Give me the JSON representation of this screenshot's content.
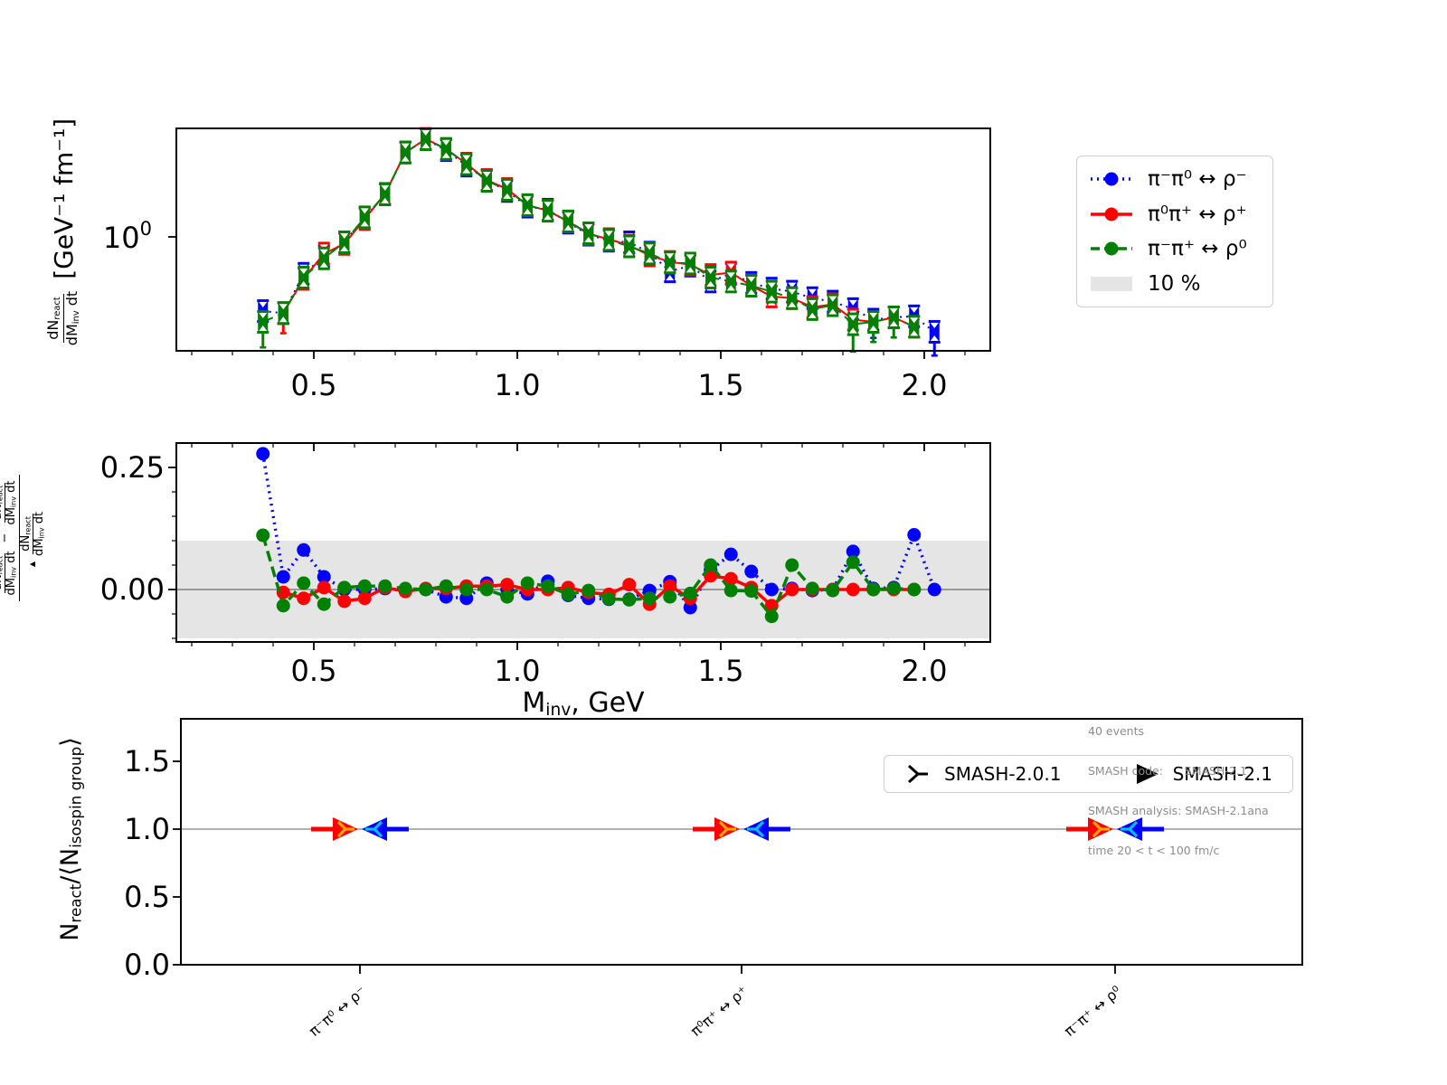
{
  "colors": {
    "blue": "#0000ff",
    "red": "#ff0000",
    "green": "#008000",
    "band": "#e5e5e5",
    "zero_line": "#808080",
    "ref_line": "#999999",
    "orange": "#ffa500",
    "cyan": "#00bfff",
    "annotation_gray": "#8c8c8c"
  },
  "legend1": {
    "items": [
      {
        "label": "π⁻π⁰ ↔ ρ⁻",
        "color": "#0000ff",
        "linestyle": "dotted"
      },
      {
        "label": "π⁰π⁺ ↔ ρ⁺",
        "color": "#ff0000",
        "linestyle": "solid"
      },
      {
        "label": "π⁻π⁺ ↔ ρ⁰",
        "color": "#008000",
        "linestyle": "dashed"
      },
      {
        "label": "10 %",
        "color": "#e5e5e5",
        "linestyle": "band"
      }
    ]
  },
  "legend2": {
    "items": [
      {
        "label": "SMASH-2.0.1",
        "marker": "tri-right"
      },
      {
        "label": "SMASH-2.1",
        "marker": "triangle-right"
      }
    ]
  },
  "annotation": {
    "lines": [
      "40 events",
      "SMASH code:      SMASH-2.1",
      "SMASH analysis: SMASH-2.1ana",
      "time 20 < t < 100 fm/c"
    ]
  },
  "labels": {
    "top_ylabel": {
      "num_main": "dN",
      "num_sub": "react",
      "den_main": "dM",
      "den_sub": "inv",
      "den_tail": " dt",
      "units": "[GeV⁻¹ fm⁻¹]"
    },
    "top_ytick": {
      "main": "10",
      "sup": "0"
    },
    "mid_ylabel": {
      "frac": {
        "num_main": "dN",
        "num_sub": "react",
        "den_main": "dM",
        "den_sub": "inv",
        "den_tail": " dt"
      },
      "minus": "−",
      "marker": "▲"
    },
    "bot_ylabel": {
      "p1": "N",
      "s1": "react",
      "p2": "/⟨N",
      "s2": "isospin group",
      "p3": "⟩"
    },
    "xlabel": {
      "main": "M",
      "sub": "inv",
      "tail": ", GeV"
    }
  },
  "chart_data": [
    {
      "type": "line",
      "name": "invariant-mass-spectrum",
      "scale_y": "log",
      "ylabel": "dN_react/dM_inv dt [GeV^-1 fm^-1]",
      "xlim": [
        0.16,
        2.16
      ],
      "ylim": [
        0.22,
        4.3
      ],
      "xtick_values": [
        0.5,
        1.0,
        1.5,
        2.0
      ],
      "xtick_labels": [
        "0.5",
        "1.0",
        "1.5",
        "2.0"
      ],
      "ytick_labels": [
        "10⁰"
      ],
      "x": [
        0.375,
        0.425,
        0.475,
        0.525,
        0.575,
        0.625,
        0.675,
        0.725,
        0.775,
        0.825,
        0.875,
        0.925,
        0.975,
        1.025,
        1.075,
        1.125,
        1.175,
        1.225,
        1.275,
        1.325,
        1.375,
        1.425,
        1.475,
        1.525,
        1.575,
        1.625,
        1.675,
        1.725,
        1.775,
        1.825,
        1.875,
        1.925,
        1.975,
        2.025
      ],
      "series": [
        {
          "name": "π⁻π⁰ ↔ ρ⁻",
          "color": "#0000ff",
          "linestyle": "dotted",
          "values": [
            0.37,
            0.36,
            0.61,
            0.77,
            0.93,
            1.29,
            1.77,
            3.1,
            3.7,
            3.2,
            2.6,
            2.14,
            1.85,
            1.5,
            1.44,
            1.21,
            1.03,
            0.95,
            0.93,
            0.81,
            0.63,
            0.68,
            0.55,
            0.61,
            0.54,
            0.5,
            0.48,
            0.44,
            0.42,
            0.38,
            0.33,
            0.34,
            0.345,
            0.28
          ]
        },
        {
          "name": "π⁰π⁺ ↔ ρ⁺",
          "color": "#ff0000",
          "linestyle": "solid",
          "values": [
            null,
            0.36,
            0.57,
            0.8,
            0.91,
            1.27,
            1.78,
            3.1,
            3.72,
            3.25,
            2.67,
            2.14,
            1.9,
            1.53,
            1.42,
            1.23,
            1.04,
            0.97,
            0.89,
            0.78,
            0.715,
            0.69,
            0.6,
            0.62,
            0.52,
            0.45,
            0.44,
            0.39,
            0.405,
            0.33,
            0.32,
            0.34,
            0.3,
            null
          ]
        },
        {
          "name": "π⁻π⁺ ↔ ρ⁰",
          "color": "#008000",
          "linestyle": "dashed",
          "values": [
            0.32,
            0.36,
            0.58,
            0.75,
            0.93,
            1.3,
            1.77,
            3.1,
            3.7,
            3.25,
            2.65,
            2.12,
            1.88,
            1.53,
            1.42,
            1.23,
            1.05,
            0.96,
            0.88,
            0.8,
            0.71,
            0.7,
            0.58,
            0.55,
            0.52,
            0.48,
            0.44,
            0.38,
            0.4,
            0.31,
            0.32,
            0.34,
            0.3,
            null
          ]
        }
      ]
    },
    {
      "type": "line",
      "name": "relative-deviation",
      "ylabel": "(dN_react/dM_inv dt − dN_react^▲/dM_inv dt) / (dN_react^▲/dM_inv dt)",
      "xlabel": "M_inv, GeV",
      "band": {
        "label": "10 %",
        "range": [
          -0.1,
          0.1
        ]
      },
      "xlim": [
        0.16,
        2.16
      ],
      "ylim": [
        -0.107,
        0.3
      ],
      "xtick_values": [
        0.5,
        1.0,
        1.5,
        2.0
      ],
      "xtick_labels": [
        "0.5",
        "1.0",
        "1.5",
        "2.0"
      ],
      "ytick_values": [
        0.0,
        0.25
      ],
      "ytick_labels": [
        "0.00",
        "0.25"
      ],
      "x": [
        0.375,
        0.425,
        0.475,
        0.525,
        0.575,
        0.625,
        0.675,
        0.725,
        0.775,
        0.825,
        0.875,
        0.925,
        0.975,
        1.025,
        1.075,
        1.125,
        1.175,
        1.225,
        1.275,
        1.325,
        1.375,
        1.425,
        1.475,
        1.525,
        1.575,
        1.625,
        1.675,
        1.725,
        1.775,
        1.825,
        1.875,
        1.925,
        1.975,
        2.025
      ],
      "series": [
        {
          "name": "π⁻π⁰ ↔ ρ⁻",
          "color": "#0000ff",
          "linestyle": "dotted",
          "values": [
            0.278,
            0.026,
            0.081,
            0.026,
            0.0,
            0.0,
            0.002,
            -0.002,
            0.0,
            -0.015,
            -0.018,
            0.013,
            0.0,
            -0.009,
            0.017,
            -0.012,
            -0.018,
            -0.02,
            -0.02,
            -0.002,
            0.016,
            -0.037,
            0.04,
            0.072,
            0.037,
            0.0,
            0.002,
            -0.002,
            0.0,
            0.078,
            0.002,
            0.004,
            0.112,
            0.0
          ]
        },
        {
          "name": "π⁰π⁺ ↔ ρ⁺",
          "color": "#ff0000",
          "linestyle": "solid",
          "values": [
            null,
            -0.006,
            -0.018,
            0.004,
            -0.024,
            -0.018,
            0.004,
            -0.004,
            0.002,
            0.002,
            0.007,
            0.007,
            0.01,
            0.0,
            0.0,
            0.004,
            -0.006,
            -0.01,
            0.01,
            -0.03,
            0.007,
            -0.018,
            0.028,
            0.022,
            0.004,
            -0.033,
            0.0,
            0.0,
            0.0,
            0.0,
            0.0,
            0.0,
            0.0,
            null
          ]
        },
        {
          "name": "π⁻π⁺ ↔ ρ⁰",
          "color": "#008000",
          "linestyle": "dashed",
          "values": [
            0.111,
            -0.033,
            0.013,
            -0.03,
            0.004,
            0.007,
            0.007,
            0.002,
            0.0,
            0.007,
            0.0,
            0.0,
            -0.015,
            0.013,
            0.007,
            -0.01,
            -0.002,
            -0.019,
            -0.021,
            -0.018,
            -0.015,
            -0.008,
            0.05,
            -0.002,
            -0.003,
            -0.055,
            0.05,
            0.002,
            -0.002,
            0.056,
            0.0,
            0.002,
            0.0,
            null
          ]
        }
      ]
    },
    {
      "type": "scatter",
      "name": "isospin-group-ratio",
      "ylabel": "N_react/⟨N_isospin group⟩",
      "categories": [
        "π⁻π⁰ ↔ ρ⁻",
        "π⁰π⁺ ↔ ρ⁺",
        "π⁻π⁺ ↔ ρ⁰"
      ],
      "ytick_values": [
        0.0,
        0.5,
        1.0,
        1.5
      ],
      "ytick_labels": [
        "0.0",
        "0.5",
        "1.0",
        "1.5"
      ],
      "ylim": [
        0,
        1.81
      ],
      "refline": 1.0,
      "series": [
        {
          "name": "SMASH-2.0.1 forward",
          "color": "#ffa500",
          "marker": "tri-right",
          "values": [
            1.0,
            1.0,
            1.0
          ]
        },
        {
          "name": "SMASH-2.1 forward",
          "color": "#ff0000",
          "marker": "triangle-right",
          "values": [
            1.0,
            1.0,
            1.0
          ]
        },
        {
          "name": "SMASH-2.0.1 backward",
          "color": "#00bfff",
          "marker": "tri-left",
          "values": [
            1.0,
            1.0,
            1.0
          ]
        },
        {
          "name": "SMASH-2.1 backward",
          "color": "#0000ff",
          "marker": "triangle-left",
          "values": [
            1.0,
            1.0,
            1.0
          ]
        }
      ]
    }
  ]
}
